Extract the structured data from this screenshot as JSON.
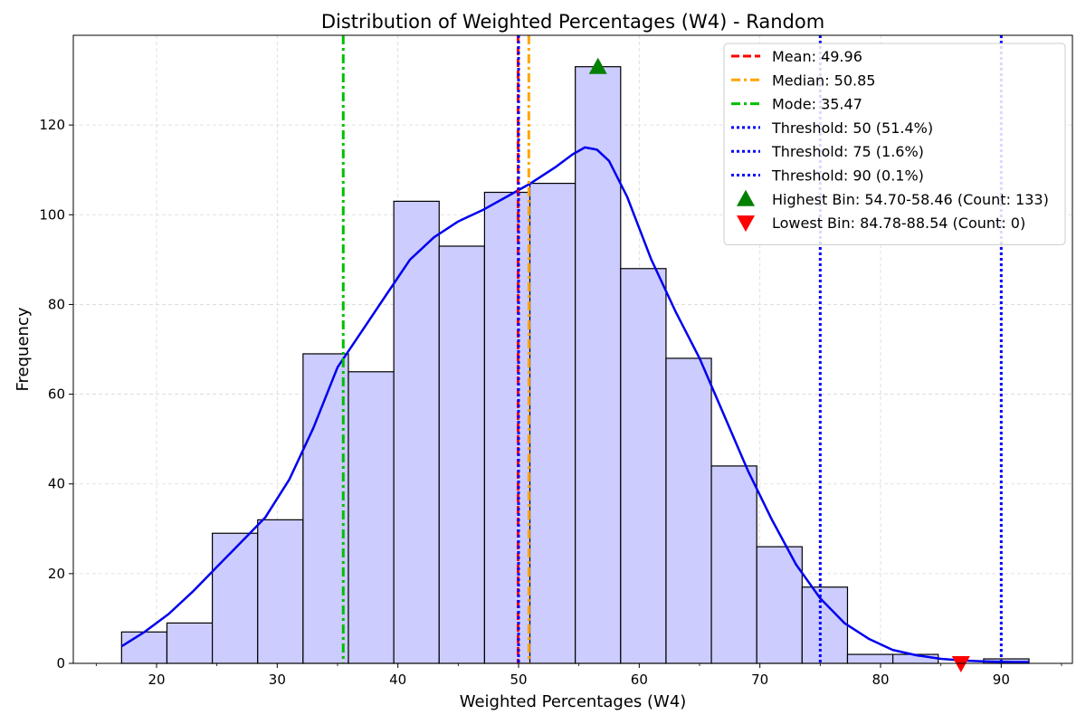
{
  "chart_data": {
    "type": "bar",
    "title": "Distribution of Weighted Percentages (W4) - Random",
    "xlabel": "Weighted Percentages (W4)",
    "ylabel": "Frequency",
    "xlim": [
      13.1,
      95.9
    ],
    "ylim": [
      0,
      140
    ],
    "x_ticks": [
      20,
      30,
      40,
      50,
      60,
      70,
      80,
      90
    ],
    "y_ticks": [
      0,
      20,
      40,
      60,
      80,
      100,
      120
    ],
    "grid": true,
    "legend_position": "top-right",
    "bin_edges": [
      17.1,
      20.86,
      24.62,
      28.38,
      32.14,
      35.9,
      39.66,
      43.42,
      47.18,
      50.94,
      54.7,
      58.46,
      62.22,
      65.98,
      69.74,
      73.5,
      77.26,
      81.02,
      84.78,
      88.54,
      92.3
    ],
    "counts": [
      7,
      9,
      29,
      32,
      69,
      65,
      103,
      93,
      105,
      107,
      133,
      88,
      68,
      44,
      26,
      17,
      2,
      2,
      0,
      1
    ],
    "bar_fill": "#ccccff",
    "bar_edge": "#000000",
    "kde": {
      "color": "#0000ee",
      "x": [
        17.1,
        19,
        21,
        23,
        25,
        27,
        29,
        31,
        33,
        35,
        37,
        39,
        41,
        43,
        45,
        47,
        49,
        51,
        53,
        54.5,
        55.5,
        56.5,
        57.5,
        59,
        61,
        63,
        65,
        67,
        69,
        71,
        73,
        75,
        77,
        79,
        81,
        83,
        85,
        87,
        89,
        91,
        92.3
      ],
      "y": [
        3.8,
        7,
        11,
        16,
        21.5,
        27,
        32.5,
        41,
        52.5,
        66,
        74,
        82,
        90,
        95,
        98.5,
        101,
        104,
        107,
        110.5,
        113.5,
        115,
        114.5,
        112,
        104,
        90,
        78.5,
        68,
        55.5,
        43,
        32,
        22,
        14.5,
        9,
        5.5,
        3,
        1.8,
        1,
        0.6,
        0.4,
        0.3,
        0.3
      ]
    },
    "vertical_lines": [
      {
        "label": "Mean: 49.96",
        "x": 49.96,
        "color": "#ff0000",
        "style": "dashed"
      },
      {
        "label": "Median: 50.85",
        "x": 50.85,
        "color": "#ffa500",
        "style": "dashdot"
      },
      {
        "label": "Mode: 35.47",
        "x": 35.47,
        "color": "#00bf00",
        "style": "dashdot"
      },
      {
        "label": "Threshold: 50 (51.4%)",
        "x": 50,
        "color": "#0000ff",
        "style": "dotted"
      },
      {
        "label": "Threshold: 75 (1.6%)",
        "x": 75,
        "color": "#0000ff",
        "style": "dotted"
      },
      {
        "label": "Threshold: 90 (0.1%)",
        "x": 90,
        "color": "#0000ff",
        "style": "dotted"
      }
    ],
    "markers": [
      {
        "label": "Highest Bin: 54.70-58.46 (Count: 133)",
        "x": 56.58,
        "y": 133,
        "color": "#008000",
        "shape": "triangle-up"
      },
      {
        "label": "Lowest Bin: 84.78-88.54 (Count: 0)",
        "x": 86.66,
        "y": 0,
        "color": "#ff0000",
        "shape": "triangle-down"
      }
    ]
  }
}
